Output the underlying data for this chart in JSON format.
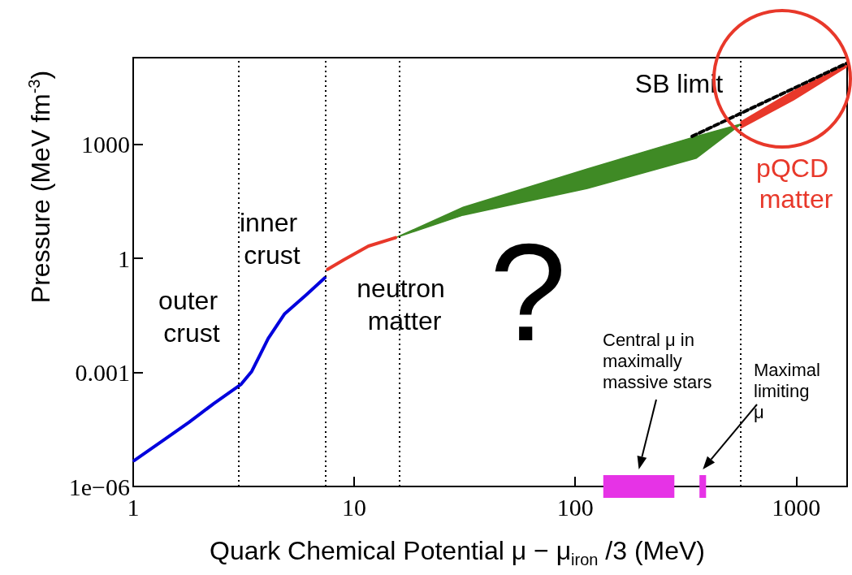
{
  "chart_data": {
    "type": "line",
    "xlabel": "Quark Chemical Potential μ − μ$_{iron}$ /3 (MeV)",
    "ylabel": "Pressure (MeV fm$^{-3}$)",
    "log": "xy",
    "grid": false,
    "marker": "none",
    "xlim": [
      1,
      1700
    ],
    "ylim": [
      1e-06,
      190000
    ],
    "xticks": [
      1,
      10,
      100,
      1000
    ],
    "yticks": [
      {
        "value": 1e-06,
        "label": "1e−06"
      },
      0.001,
      1,
      1000
    ],
    "series": [
      {
        "color": "#0000dd",
        "x": [
          1.01,
          1.36,
          1.79,
          2.31,
          3.08,
          3.44,
          3.75,
          4.08,
          4.83,
          6.07,
          7.37
        ],
        "values": [
          4.8e-06,
          1.6e-05,
          4.9e-05,
          0.00015,
          0.00049,
          0.00107,
          0.0029,
          0.0078,
          0.034,
          0.11,
          0.31
        ]
      },
      {
        "color": "#e8382a",
        "x": [
          7.57,
          8.96,
          11.6,
          15.4
        ],
        "values": [
          0.51,
          0.91,
          2.1,
          3.5
        ]
      },
      {
        "type": "area",
        "color": "#3f8a25",
        "x": [
          15.4,
          31.1,
          113.5,
          353,
          562
        ],
        "values": [
          null,
          null,
          null,
          null,
          null
        ],
        "lower": [
          3.5,
          13.7,
          69,
          430,
          3400
        ],
        "upper": [
          3.5,
          22,
          226,
          1620,
          3400
        ]
      },
      {
        "type": "area",
        "name": "pQCD matter",
        "color": "#e8382a",
        "x": [
          562,
          975,
          1690
        ],
        "values": [
          null,
          null,
          null
        ],
        "lower": [
          2650,
          14800,
          107000
        ],
        "upper": [
          3900,
          25700,
          123000
        ]
      },
      {
        "name": "SB limit",
        "color": "#000000",
        "line_style": "dashed",
        "x": [
          338,
          1690
        ],
        "values": [
          1620,
          135000
        ]
      },
      {
        "color": "#e633e6",
        "x": [
          134,
          281,
          null,
          365,
          391
        ],
        "values": [
          1e-06,
          1e-06,
          null,
          1e-06,
          1e-06
        ]
      }
    ],
    "ref_lines": [
      {
        "axis": "x",
        "value": 3,
        "color": "#000000",
        "line_style": "dotted"
      },
      {
        "axis": "x",
        "value": 7.4,
        "color": "#000000",
        "line_style": "dotted"
      },
      {
        "axis": "x",
        "value": 16,
        "color": "#000000",
        "line_style": "dotted"
      },
      {
        "axis": "x",
        "value": 560,
        "color": "#000000",
        "line_style": "dotted"
      }
    ],
    "annotations": [
      "outer crust",
      "inner crust",
      "neutron matter",
      "?",
      "Central μ in maximally massive stars",
      "Maximal limiting μ"
    ]
  }
}
